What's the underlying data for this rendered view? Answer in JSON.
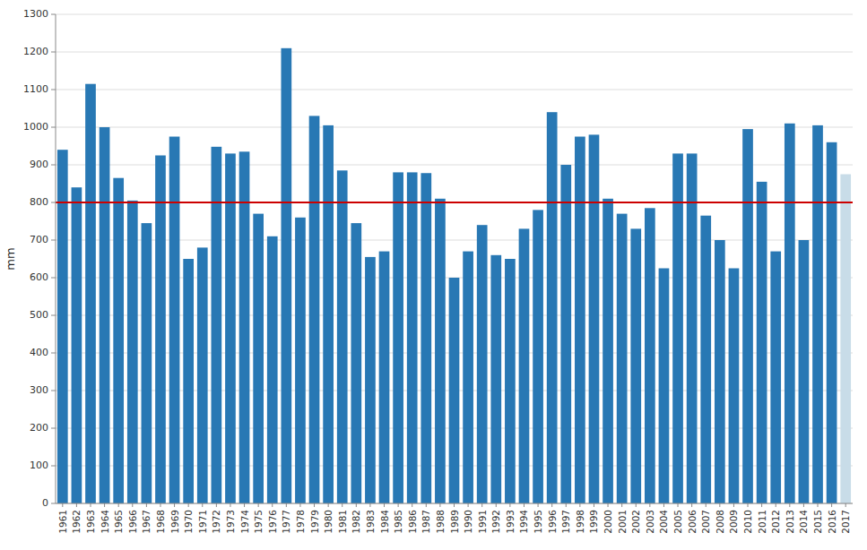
{
  "chart_data": {
    "type": "bar",
    "y_label": "mm",
    "categories": [
      "1961",
      "1962",
      "1963",
      "1964",
      "1965",
      "1966",
      "1967",
      "1968",
      "1969",
      "1970",
      "1971",
      "1972",
      "1973",
      "1974",
      "1975",
      "1976",
      "1977",
      "1978",
      "1979",
      "1980",
      "1981",
      "1982",
      "1983",
      "1984",
      "1985",
      "1986",
      "1987",
      "1988",
      "1989",
      "1990",
      "1991",
      "1992",
      "1993",
      "1994",
      "1995",
      "1996",
      "1997",
      "1998",
      "1999",
      "2000",
      "2001",
      "2002",
      "2003",
      "2004",
      "2005",
      "2006",
      "2007",
      "2008",
      "2009",
      "2010",
      "2011",
      "2012",
      "2013",
      "2014",
      "2015",
      "2016",
      "2017"
    ],
    "values": [
      940,
      840,
      1115,
      1000,
      865,
      805,
      745,
      925,
      975,
      650,
      680,
      948,
      930,
      935,
      770,
      710,
      1210,
      760,
      1030,
      1005,
      885,
      745,
      655,
      670,
      880,
      880,
      878,
      810,
      600,
      670,
      740,
      660,
      650,
      730,
      780,
      1040,
      900,
      975,
      980,
      810,
      770,
      730,
      785,
      625,
      930,
      930,
      765,
      700,
      625,
      995,
      855,
      670,
      1010,
      700,
      1005,
      960,
      875
    ],
    "colors": [
      "#2878b4",
      "#2878b4",
      "#2878b4",
      "#2878b4",
      "#2878b4",
      "#2878b4",
      "#2878b4",
      "#2878b4",
      "#2878b4",
      "#2878b4",
      "#2878b4",
      "#2878b4",
      "#2878b4",
      "#2878b4",
      "#2878b4",
      "#2878b4",
      "#2878b4",
      "#2878b4",
      "#2878b4",
      "#2878b4",
      "#2878b4",
      "#2878b4",
      "#2878b4",
      "#2878b4",
      "#2878b4",
      "#2878b4",
      "#2878b4",
      "#2878b4",
      "#2878b4",
      "#2878b4",
      "#2878b4",
      "#2878b4",
      "#2878b4",
      "#2878b4",
      "#2878b4",
      "#2878b4",
      "#2878b4",
      "#2878b4",
      "#2878b4",
      "#2878b4",
      "#2878b4",
      "#2878b4",
      "#2878b4",
      "#2878b4",
      "#2878b4",
      "#2878b4",
      "#2878b4",
      "#2878b4",
      "#2878b4",
      "#2878b4",
      "#2878b4",
      "#2878b4",
      "#2878b4",
      "#2878b4",
      "#2878b4",
      "#2878b4",
      "#c8dce8"
    ],
    "reference_line": {
      "value": 800,
      "color": "#cc0000"
    },
    "ylim": [
      0,
      1300
    ],
    "yticks": [
      0,
      100,
      200,
      300,
      400,
      500,
      600,
      700,
      800,
      900,
      1000,
      1100,
      1200,
      1300
    ],
    "grid": true
  }
}
